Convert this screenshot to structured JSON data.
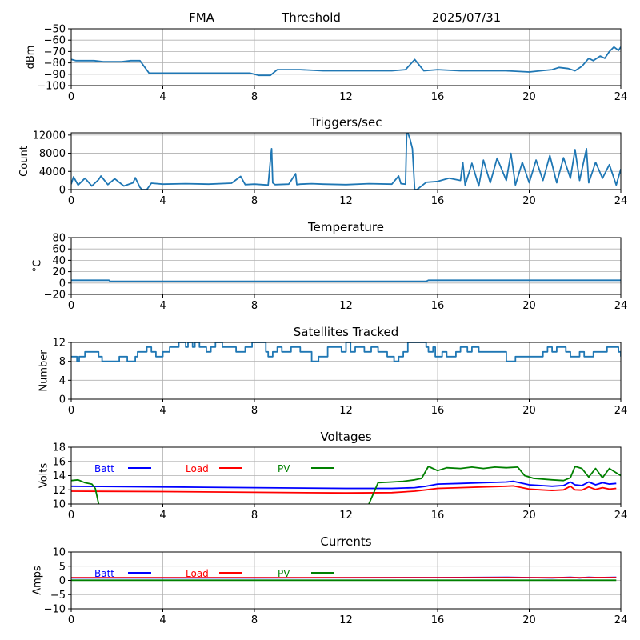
{
  "figure": {
    "header": {
      "station": "FMA",
      "mode": "Threshold",
      "date": "2025/07/31"
    }
  },
  "chart_data": [
    {
      "id": "threshold",
      "type": "line",
      "title": "",
      "xlabel": "",
      "ylabel": "dBm",
      "xlim": [
        0,
        24
      ],
      "ylim": [
        -100,
        -50
      ],
      "xticks": [
        "0",
        "4",
        "8",
        "12",
        "16",
        "20",
        "24"
      ],
      "yticks": [
        "-100",
        "-90",
        "-80",
        "-70",
        "-60",
        "-50"
      ],
      "ytick_values": [
        -100,
        -90,
        -80,
        -70,
        -60,
        -50
      ],
      "grid": true,
      "series": [
        {
          "name": "Threshold",
          "color": "#1f77b4",
          "x": [
            0,
            0.2,
            0.5,
            1,
            1.4,
            1.8,
            2.2,
            2.6,
            3.0,
            3.4,
            4,
            5,
            6,
            7,
            7.8,
            8.2,
            8.7,
            9.0,
            9.5,
            10,
            11,
            12,
            13,
            14,
            14.6,
            15.0,
            15.4,
            16,
            17,
            18,
            19,
            20,
            20.5,
            21,
            21.3,
            21.7,
            22,
            22.3,
            22.6,
            22.8,
            23.1,
            23.3,
            23.5,
            23.7,
            23.9,
            24
          ],
          "y": [
            -77,
            -78,
            -78,
            -78,
            -79,
            -79,
            -79,
            -78,
            -78,
            -89,
            -89,
            -89,
            -89,
            -89,
            -89,
            -91,
            -91,
            -86,
            -86,
            -86,
            -87,
            -87,
            -87,
            -87,
            -86,
            -77,
            -87,
            -86,
            -87,
            -87,
            -87,
            -88,
            -87,
            -86,
            -84,
            -85,
            -87,
            -83,
            -76,
            -78,
            -74,
            -76,
            -70,
            -66,
            -69,
            -66
          ]
        }
      ]
    },
    {
      "id": "triggers",
      "type": "line",
      "title": "Triggers/sec",
      "xlabel": "",
      "ylabel": "Count",
      "xlim": [
        0,
        24
      ],
      "ylim": [
        0,
        12500
      ],
      "xticks": [
        "0",
        "4",
        "8",
        "12",
        "16",
        "20",
        "24"
      ],
      "yticks": [
        "0",
        "4000",
        "8000",
        "12000"
      ],
      "ytick_values": [
        0,
        4000,
        8000,
        12000
      ],
      "grid": true,
      "series": [
        {
          "name": "Triggers",
          "color": "#1f77b4",
          "x": [
            0,
            0.1,
            0.3,
            0.6,
            0.9,
            1.2,
            1.3,
            1.6,
            1.9,
            2.3,
            2.7,
            2.8,
            3.0,
            3.1,
            3.3,
            3.5,
            4,
            5,
            6,
            7,
            7.4,
            7.6,
            8,
            8.6,
            8.7,
            8.75,
            8.8,
            8.9,
            9.5,
            9.8,
            9.85,
            10,
            10.5,
            11,
            12,
            13,
            14,
            14.3,
            14.4,
            14.6,
            14.65,
            14.7,
            14.8,
            14.9,
            15.0,
            15.1,
            15.5,
            16,
            16.5,
            17,
            17.1,
            17.2,
            17.5,
            17.8,
            18,
            18.3,
            18.6,
            19,
            19.2,
            19.4,
            19.7,
            20,
            20.3,
            20.6,
            20.9,
            21.2,
            21.5,
            21.8,
            22.0,
            22.2,
            22.5,
            22.6,
            22.9,
            23.2,
            23.5,
            23.8,
            24
          ],
          "y": [
            1200,
            2800,
            1000,
            2500,
            800,
            2200,
            3000,
            1100,
            2400,
            800,
            1500,
            2600,
            500,
            0,
            0,
            1400,
            1200,
            1300,
            1200,
            1400,
            2900,
            1100,
            1200,
            1000,
            6500,
            9000,
            1500,
            1100,
            1200,
            3500,
            1100,
            1200,
            1300,
            1200,
            1100,
            1300,
            1200,
            3000,
            1300,
            1200,
            12500,
            12500,
            11000,
            9000,
            0,
            0,
            1600,
            1800,
            2500,
            2000,
            6000,
            1000,
            5800,
            800,
            6500,
            1500,
            6900,
            2000,
            8000,
            1000,
            6000,
            1500,
            6500,
            2000,
            7500,
            1500,
            7000,
            2500,
            8800,
            2000,
            9000,
            1500,
            6000,
            2500,
            5500,
            1000,
            4500
          ]
        }
      ]
    },
    {
      "id": "temperature",
      "type": "line",
      "title": "Temperature",
      "xlabel": "",
      "ylabel": "°C",
      "xlim": [
        0,
        24
      ],
      "ylim": [
        -20,
        80
      ],
      "xticks": [
        "0",
        "4",
        "8",
        "12",
        "16",
        "20",
        "24"
      ],
      "yticks": [
        "-20",
        "0",
        "20",
        "40",
        "60",
        "80"
      ],
      "ytick_values": [
        -20,
        0,
        20,
        40,
        60,
        80
      ],
      "grid": true,
      "series": [
        {
          "name": "Temperature",
          "color": "#1f77b4",
          "x": [
            0,
            1.65,
            1.7,
            15.5,
            15.6,
            24
          ],
          "y": [
            5,
            5,
            3,
            3,
            5,
            5
          ]
        }
      ]
    },
    {
      "id": "satellites",
      "type": "line",
      "title": "Satellites Tracked",
      "xlabel": "",
      "ylabel": "Number",
      "xlim": [
        0,
        24
      ],
      "ylim": [
        0,
        12
      ],
      "xticks": [
        "0",
        "4",
        "8",
        "12",
        "16",
        "20",
        "24"
      ],
      "yticks": [
        "0",
        "4",
        "8",
        "12"
      ],
      "ytick_values": [
        0,
        4,
        8,
        12
      ],
      "grid": true,
      "series": [
        {
          "name": "Satellites",
          "color": "#1f77b4",
          "step": true,
          "x": [
            0,
            0.25,
            0.35,
            0.6,
            1.2,
            1.35,
            2.1,
            2.45,
            2.8,
            2.9,
            3.0,
            3.3,
            3.5,
            3.7,
            4.0,
            4.3,
            4.5,
            4.7,
            5.0,
            5.1,
            5.3,
            5.4,
            5.6,
            5.7,
            5.9,
            6.1,
            6.3,
            6.6,
            7.2,
            7.6,
            7.9,
            8.0,
            8.2,
            8.5,
            8.6,
            8.8,
            9.0,
            9.2,
            9.6,
            10.0,
            10.5,
            10.8,
            11.2,
            11.8,
            12.0,
            12.2,
            12.4,
            12.8,
            13.1,
            13.4,
            13.8,
            14.1,
            14.3,
            14.5,
            14.7,
            15.2,
            15.5,
            15.6,
            15.8,
            15.9,
            16.2,
            16.4,
            16.8,
            17.0,
            17.3,
            17.5,
            17.8,
            18.2,
            19.0,
            19.3,
            19.4,
            19.9,
            20.5,
            20.6,
            20.8,
            21.0,
            21.2,
            21.6,
            21.8,
            22.2,
            22.4,
            22.8,
            23.2,
            23.4,
            23.9,
            24
          ],
          "y": [
            9,
            8,
            9,
            10,
            9,
            8,
            9,
            8,
            9,
            10,
            10,
            11,
            10,
            9,
            10,
            11,
            11,
            12,
            11,
            12,
            11,
            12,
            11,
            11,
            10,
            11,
            12,
            11,
            10,
            11,
            12,
            12,
            12,
            10,
            9,
            10,
            11,
            10,
            11,
            10,
            8,
            9,
            11,
            10,
            12,
            10,
            11,
            10,
            11,
            10,
            9,
            8,
            9,
            10,
            12,
            12,
            11,
            10,
            11,
            9,
            10,
            9,
            10,
            11,
            10,
            11,
            10,
            10,
            8,
            8,
            9,
            9,
            9,
            10,
            11,
            10,
            11,
            10,
            9,
            10,
            9,
            10,
            10,
            11,
            10,
            9
          ]
        }
      ]
    },
    {
      "id": "voltages",
      "type": "line",
      "title": "Voltages",
      "xlabel": "",
      "ylabel": "Volts",
      "xlim": [
        0,
        24
      ],
      "ylim": [
        10,
        18
      ],
      "xticks": [
        "0",
        "4",
        "8",
        "12",
        "16",
        "20",
        "24"
      ],
      "yticks": [
        "10",
        "12",
        "14",
        "16",
        "18"
      ],
      "ytick_values": [
        10,
        12,
        14,
        16,
        18
      ],
      "grid": true,
      "legend": [
        {
          "label": "Batt",
          "color": "#0000ff"
        },
        {
          "label": "Load",
          "color": "#ff0000"
        },
        {
          "label": "PV",
          "color": "#008000"
        }
      ],
      "series": [
        {
          "name": "Batt",
          "color": "#0000ff",
          "x": [
            0,
            4,
            8,
            12,
            14,
            15,
            15.5,
            16,
            17,
            18,
            19,
            19.3,
            20,
            20.5,
            21,
            21.5,
            21.8,
            22,
            22.3,
            22.6,
            22.9,
            23.2,
            23.5,
            23.8
          ],
          "y": [
            12.5,
            12.4,
            12.3,
            12.2,
            12.2,
            12.3,
            12.5,
            12.8,
            12.9,
            13.0,
            13.1,
            13.2,
            12.7,
            12.6,
            12.5,
            12.6,
            13.1,
            12.7,
            12.6,
            13.1,
            12.7,
            13.0,
            12.8,
            12.9
          ]
        },
        {
          "name": "Load",
          "color": "#ff0000",
          "x": [
            0,
            4,
            8,
            12,
            14,
            15,
            15.5,
            16,
            17,
            18,
            19,
            19.3,
            20,
            20.5,
            21,
            21.5,
            21.8,
            22,
            22.3,
            22.6,
            22.9,
            23.2,
            23.5,
            23.8
          ],
          "y": [
            11.8,
            11.75,
            11.65,
            11.55,
            11.6,
            11.8,
            12.0,
            12.2,
            12.3,
            12.4,
            12.5,
            12.55,
            12.1,
            12.0,
            11.9,
            12.0,
            12.5,
            12.0,
            11.95,
            12.4,
            12.05,
            12.3,
            12.1,
            12.2
          ]
        },
        {
          "name": "PV",
          "color": "#008000",
          "x": [
            0,
            0.3,
            0.6,
            0.9,
            1.05,
            1.2,
            1.4,
            12.8,
            13.0,
            13.4,
            14,
            14.5,
            15.0,
            15.3,
            15.6,
            16,
            16.4,
            17,
            17.5,
            18,
            18.5,
            19,
            19.5,
            19.8,
            20.2,
            21,
            21.5,
            21.8,
            22,
            22.3,
            22.6,
            22.9,
            23.2,
            23.5,
            23.8,
            24
          ],
          "y": [
            13.3,
            13.4,
            13.0,
            12.8,
            12.2,
            10.0,
            9.0,
            9.0,
            10.0,
            13.0,
            13.1,
            13.2,
            13.4,
            13.6,
            15.3,
            14.7,
            15.1,
            15.0,
            15.2,
            15.0,
            15.2,
            15.1,
            15.2,
            14.0,
            13.6,
            13.4,
            13.3,
            13.7,
            15.3,
            15.0,
            13.8,
            15.0,
            13.7,
            15.0,
            14.4,
            14.0
          ]
        }
      ]
    },
    {
      "id": "currents",
      "type": "line",
      "title": "Currents",
      "xlabel": "",
      "ylabel": "Amps",
      "xlim": [
        0,
        24
      ],
      "ylim": [
        -10,
        10
      ],
      "xticks": [
        "0",
        "4",
        "8",
        "12",
        "16",
        "20",
        "24"
      ],
      "yticks": [
        "-10",
        "-5",
        "0",
        "5",
        "10"
      ],
      "ytick_values": [
        -10,
        -5,
        0,
        5,
        10
      ],
      "grid": true,
      "legend": [
        {
          "label": "Batt",
          "color": "#0000ff"
        },
        {
          "label": "Load",
          "color": "#ff0000"
        },
        {
          "label": "PV",
          "color": "#008000"
        }
      ],
      "series": [
        {
          "name": "Batt",
          "color": "#0000ff",
          "x": [
            0,
            8,
            16,
            19,
            20,
            21,
            21.8,
            22.2,
            22.6,
            23,
            23.8
          ],
          "y": [
            0.9,
            0.9,
            1.0,
            1.1,
            1.0,
            0.9,
            1.1,
            0.9,
            1.1,
            1.0,
            1.1
          ]
        },
        {
          "name": "Load",
          "color": "#ff0000",
          "x": [
            0,
            8,
            16,
            19,
            20,
            21,
            21.8,
            22.2,
            22.6,
            23,
            23.8
          ],
          "y": [
            0.95,
            0.95,
            0.95,
            1.0,
            0.95,
            0.95,
            1.0,
            0.95,
            1.0,
            1.0,
            1.0
          ]
        },
        {
          "name": "PV",
          "color": "#008000",
          "x": [
            0,
            23.8
          ],
          "y": [
            0.05,
            0.05
          ]
        }
      ]
    }
  ]
}
